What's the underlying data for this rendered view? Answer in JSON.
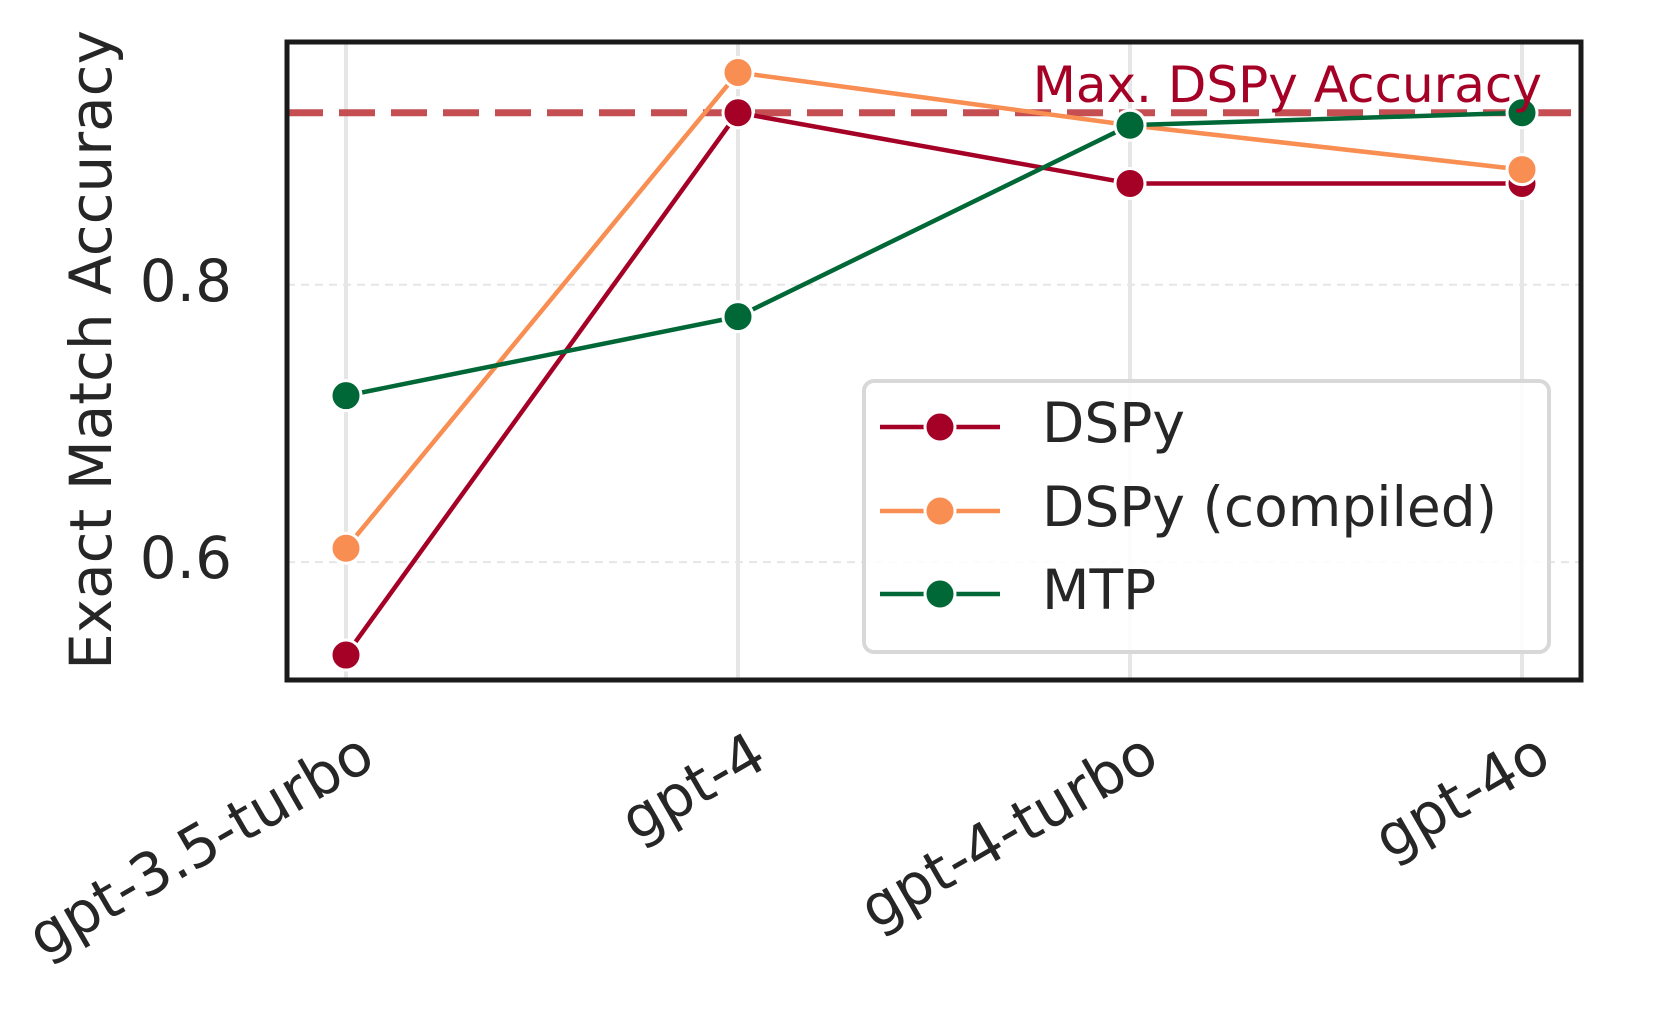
{
  "chart_data": {
    "type": "line",
    "title": "",
    "xlabel": "",
    "ylabel": "Exact Match Accuracy",
    "categories": [
      "gpt-3.5-turbo",
      "gpt-4",
      "gpt-4-turbo",
      "gpt-4o"
    ],
    "ylim": [
      0.515,
      0.975
    ],
    "yticks": [
      0.6,
      0.8
    ],
    "ytick_labels": [
      "0.6",
      "0.8"
    ],
    "grid": true,
    "legend_position": "lower-right",
    "series": [
      {
        "name": "DSPy",
        "color": "#a50026",
        "values": [
          0.533,
          0.924,
          0.873,
          0.873
        ]
      },
      {
        "name": "DSPy (compiled)",
        "color": "#f88e52",
        "values": [
          0.61,
          0.953,
          0.915,
          0.883
        ]
      },
      {
        "name": "MTP",
        "color": "#006837",
        "values": [
          0.72,
          0.777,
          0.915,
          0.924
        ]
      }
    ],
    "reference_line": {
      "label": "Max. DSPy Accuracy",
      "value": 0.924,
      "color": "#c44e52",
      "label_color": "#a50026"
    }
  }
}
